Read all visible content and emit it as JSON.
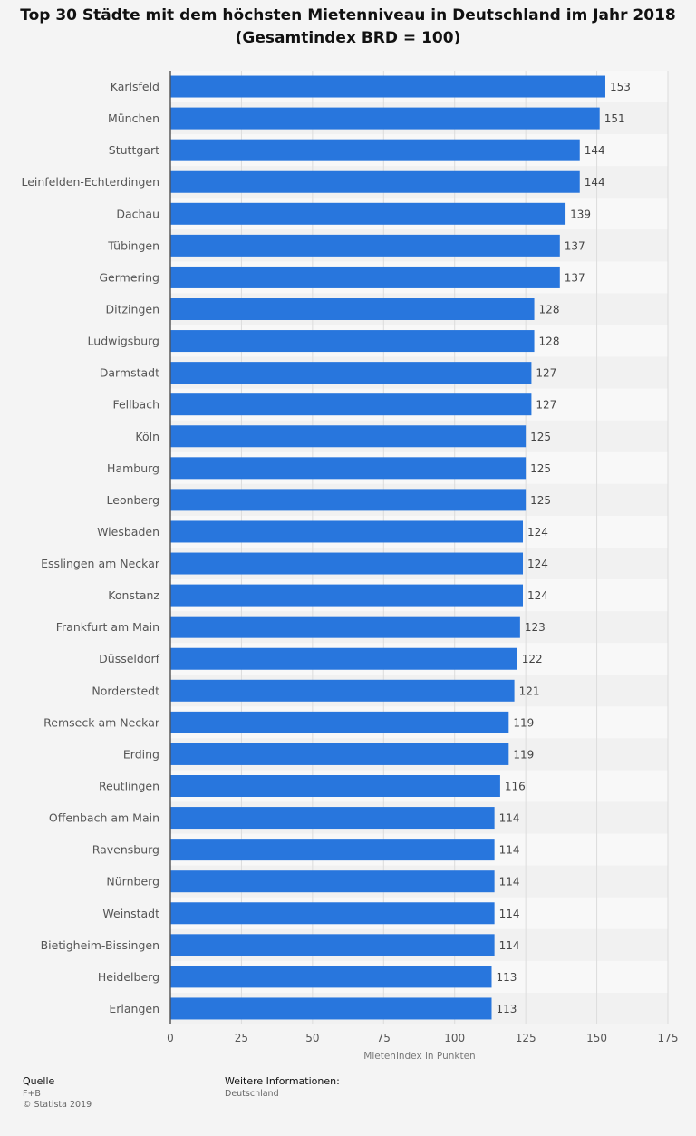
{
  "chart_data": {
    "type": "bar",
    "orientation": "horizontal",
    "title": "Top 30 Städte mit dem höchsten Mietenniveau in Deutschland im Jahr 2018 (Gesamtindex BRD = 100)",
    "xlabel": "Mietenindex in Punkten",
    "ylabel": "",
    "xlim": [
      0,
      175
    ],
    "xticks": [
      0,
      25,
      50,
      75,
      100,
      125,
      150,
      175
    ],
    "grid": true,
    "color": "#2876dd",
    "categories": [
      "Karlsfeld",
      "München",
      "Stuttgart",
      "Leinfelden-Echterdingen",
      "Dachau",
      "Tübingen",
      "Germering",
      "Ditzingen",
      "Ludwigsburg",
      "Darmstadt",
      "Fellbach",
      "Köln",
      "Hamburg",
      "Leonberg",
      "Wiesbaden",
      "Esslingen am Neckar",
      "Konstanz",
      "Frankfurt am Main",
      "Düsseldorf",
      "Norderstedt",
      "Remseck am Neckar",
      "Erding",
      "Reutlingen",
      "Offenbach am Main",
      "Ravensburg",
      "Nürnberg",
      "Weinstadt",
      "Bietigheim-Bissingen",
      "Heidelberg",
      "Erlangen"
    ],
    "values": [
      153,
      151,
      144,
      144,
      139,
      137,
      137,
      128,
      128,
      127,
      127,
      125,
      125,
      125,
      124,
      124,
      124,
      123,
      122,
      121,
      119,
      119,
      116,
      114,
      114,
      114,
      114,
      114,
      113,
      113
    ]
  },
  "footer": {
    "source_heading": "Quelle",
    "source_name": "F+B",
    "copyright": "© Statista 2019",
    "info_heading": "Weitere Informationen:",
    "info_text": "Deutschland"
  }
}
